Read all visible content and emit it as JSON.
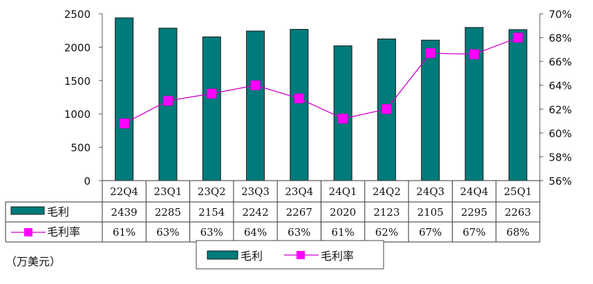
{
  "chart_data": {
    "type": "bar",
    "categories": [
      "22Q4",
      "23Q1",
      "23Q2",
      "23Q3",
      "23Q4",
      "24Q1",
      "24Q2",
      "24Q3",
      "24Q4",
      "25Q1"
    ],
    "series": [
      {
        "name": "毛利",
        "type": "bar",
        "axis": "left",
        "color": "#007a7a",
        "values": [
          2439,
          2285,
          2154,
          2242,
          2267,
          2020,
          2123,
          2105,
          2295,
          2263
        ],
        "labels": [
          "2439",
          "2285",
          "2154",
          "2242",
          "2267",
          "2020",
          "2123",
          "2105",
          "2295",
          "2263"
        ]
      },
      {
        "name": "毛利率",
        "type": "line",
        "axis": "right",
        "color": "#ff00ff",
        "line_color": "#cc00cc",
        "values": [
          60.8,
          62.7,
          63.3,
          64.0,
          62.9,
          61.2,
          62.0,
          66.7,
          66.6,
          68.0
        ],
        "labels": [
          "61%",
          "63%",
          "63%",
          "64%",
          "63%",
          "61%",
          "62%",
          "67%",
          "67%",
          "68%"
        ]
      }
    ],
    "y_left": {
      "lim": [
        0,
        2500
      ],
      "ticks": [
        "0",
        "500",
        "1000",
        "1500",
        "2000",
        "2500"
      ]
    },
    "y_right": {
      "lim": [
        56,
        70
      ],
      "ticks": [
        "56%",
        "58%",
        "60%",
        "62%",
        "64%",
        "66%",
        "68%",
        "70%"
      ]
    },
    "unit_note": "（万美元）",
    "legend": {
      "position": "bottom",
      "items": [
        "毛利",
        "毛利率"
      ]
    },
    "grid": false
  }
}
